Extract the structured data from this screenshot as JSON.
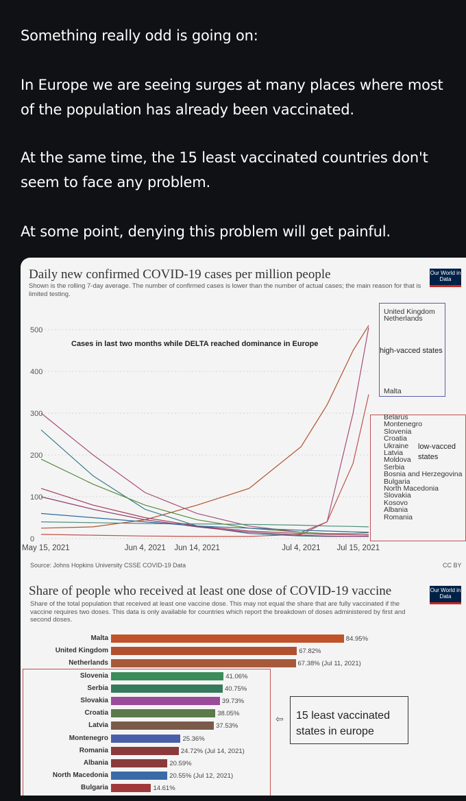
{
  "post": {
    "p1": "Something really odd is going on:",
    "p2": "In Europe we are seeing surges at many places where most of the population has already been vaccinated.",
    "p3": "At the same time, the 15 least vaccinated countries don't seem to face any problem.",
    "p4": "At some point, denying this problem will get painful."
  },
  "chart1": {
    "title": "Daily new confirmed COVID-19 cases per million people",
    "subtitle": "Shown is the rolling 7-day average. The number of confirmed cases is lower than the number of actual cases; the main reason for that is limited testing.",
    "logo": "Our World in Data",
    "annotation": "Cases in last two months while DELTA reached dominance in Europe",
    "source": "Source: Johns Hopkins University CSSE COVID-19 Data",
    "license": "CC BY",
    "high_box_label": "high-vacced states",
    "low_box_label": "low-vacced states"
  },
  "chart_data": [
    {
      "type": "line",
      "title": "Daily new confirmed COVID-19 cases per million people",
      "xlabel": "",
      "ylabel": "",
      "ylim": [
        0,
        500
      ],
      "yticks": [
        "0",
        "100",
        "200",
        "300",
        "400",
        "500"
      ],
      "xticks": [
        "May 15, 2021",
        "Jun 4, 2021",
        "Jun 14, 2021",
        "Jul 4, 2021",
        "Jul 15, 2021"
      ],
      "x": [
        0,
        10,
        20,
        30,
        40,
        50,
        55,
        60,
        63
      ],
      "series": [
        {
          "name": "United Kingdom",
          "color": "#b0522c",
          "values": [
            25,
            28,
            45,
            80,
            120,
            220,
            320,
            450,
            510
          ]
        },
        {
          "name": "Netherlands",
          "color": "#a64d79",
          "values": [
            300,
            200,
            110,
            60,
            30,
            15,
            40,
            300,
            505
          ]
        },
        {
          "name": "Malta",
          "color": "#c24f4a",
          "values": [
            10,
            8,
            6,
            5,
            5,
            10,
            40,
            180,
            345
          ]
        },
        {
          "name": "Belarus",
          "color": "#4a8c7a",
          "values": [
            40,
            38,
            36,
            35,
            34,
            32,
            30,
            29,
            28
          ]
        },
        {
          "name": "Croatia",
          "color": "#3d7d8c",
          "values": [
            260,
            150,
            70,
            30,
            12,
            6,
            5,
            5,
            6
          ]
        },
        {
          "name": "Ukraine",
          "color": "#a43b5a",
          "values": [
            120,
            80,
            50,
            30,
            18,
            12,
            10,
            9,
            9
          ]
        },
        {
          "name": "Latvia",
          "color": "#578a3c",
          "values": [
            190,
            130,
            80,
            45,
            25,
            15,
            12,
            12,
            14
          ]
        },
        {
          "name": "Bulgaria",
          "color": "#8c3b6a",
          "values": [
            100,
            70,
            45,
            28,
            15,
            8,
            6,
            5,
            5
          ]
        },
        {
          "name": "Moldova",
          "color": "#2c6b9a",
          "values": [
            60,
            50,
            40,
            30,
            25,
            20,
            18,
            16,
            15
          ]
        }
      ],
      "legend": [
        "United Kingdom",
        "Netherlands",
        "Malta",
        "Belarus",
        "Montenegro",
        "Slovenia",
        "Croatia",
        "Ukraine",
        "Latvia",
        "Moldova",
        "Serbia",
        "Bosnia and Herzegovina",
        "Bulgaria",
        "North Macedonia",
        "Slovakia",
        "Kosovo",
        "Albania",
        "Romania"
      ]
    },
    {
      "type": "bar",
      "title": "Share of people who received at least one dose of COVID-19 vaccine",
      "subtitle": "Share of the total population that received at least one vaccine dose. This may not equal the share that are fully vaccinated if the vaccine requires two doses. This data is only available for countries which report the breakdown of doses administered by first and second doses.",
      "categories": [
        "Malta",
        "United Kingdom",
        "Netherlands",
        "Slovenia",
        "Serbia",
        "Slovakia",
        "Croatia",
        "Latvia",
        "Montenegro",
        "Romania",
        "Albania",
        "North Macedonia",
        "Bulgaria"
      ],
      "values": [
        84.95,
        67.82,
        67.38,
        41.06,
        40.75,
        39.73,
        38.05,
        37.53,
        25.36,
        24.72,
        20.59,
        20.55,
        14.61
      ],
      "value_labels": [
        "84.95%",
        "67.82%",
        "67.38% (Jul 11, 2021)",
        "41.06%",
        "40.75%",
        "39.73%",
        "38.05%",
        "37.53%",
        "25.36%",
        "24.72% (Jul 14, 2021)",
        "20.59%",
        "20.55% (Jul 12, 2021)",
        "14.61%"
      ],
      "colors": [
        "#c0532a",
        "#b05030",
        "#a65a3a",
        "#3c8c5c",
        "#357a5a",
        "#9b4a9a",
        "#5c7a4a",
        "#7a5a4a",
        "#4a5fa8",
        "#8a3a3a",
        "#8a3a3a",
        "#3a6aa8",
        "#a03a3a"
      ],
      "xlim": [
        0,
        100
      ]
    }
  ],
  "chart2": {
    "logo": "Our World in Data",
    "callout": "15 least vaccinated states in europe"
  }
}
